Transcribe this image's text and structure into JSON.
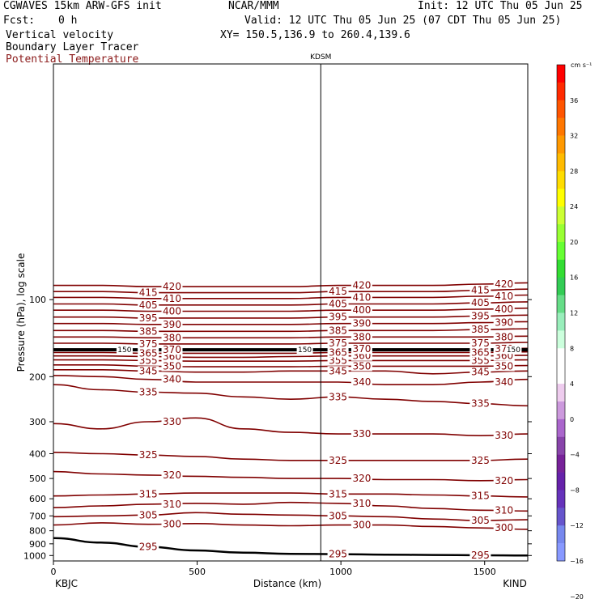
{
  "header": {
    "model": "CGWAVES 15km ARW-GFS init",
    "org": "NCAR/MMM",
    "init": "Init: 12 UTC Thu 05 Jun 25",
    "fcst_label": "Fcst:",
    "fcst_value": "0 h",
    "valid": "Valid: 12 UTC Thu 05 Jun 25 (07 CDT Thu 05 Jun 25)",
    "field1": "Vertical velocity",
    "field2": "Boundary Layer Tracer",
    "field3": "Potential Temperature",
    "xy": "XY= 150.5,136.9 to 260.4,139.6"
  },
  "chart_data": {
    "type": "line",
    "title": "",
    "xlabel": "Distance (km)",
    "ylabel": "Pressure (hPa), log scale",
    "xlim": [
      0,
      1650
    ],
    "ylim": [
      1050,
      12
    ],
    "y_scale": "log",
    "x_ticks": [
      0,
      500,
      1000,
      1500
    ],
    "y_ticks": [
      100,
      200,
      300,
      400,
      500,
      600,
      700,
      800,
      900,
      1000
    ],
    "marker_label": "KDSM",
    "marker_x": 930,
    "left_station": "KBJC",
    "right_station": "KIND",
    "line_color": "#800000",
    "series": [
      {
        "theta": "295",
        "x": [
          0,
          165,
          330,
          495,
          660,
          825,
          990,
          1155,
          1320,
          1485,
          1650
        ],
        "p": [
          855,
          890,
          925,
          955,
          975,
          985,
          988,
          992,
          995,
          998,
          1000
        ]
      },
      {
        "theta": "300",
        "x": [
          0,
          165,
          330,
          495,
          660,
          825,
          990,
          1155,
          1320,
          1485,
          1650
        ],
        "p": [
          760,
          745,
          755,
          750,
          760,
          765,
          760,
          760,
          770,
          780,
          790
        ]
      },
      {
        "theta": "305",
        "x": [
          0,
          165,
          330,
          495,
          660,
          825,
          990,
          1155,
          1320,
          1485,
          1650
        ],
        "p": [
          705,
          700,
          695,
          680,
          690,
          695,
          700,
          705,
          720,
          730,
          725
        ]
      },
      {
        "theta": "310",
        "x": [
          0,
          165,
          330,
          495,
          660,
          825,
          990,
          1155,
          1320,
          1485,
          1650
        ],
        "p": [
          650,
          640,
          630,
          625,
          630,
          620,
          625,
          640,
          655,
          665,
          670
        ]
      },
      {
        "theta": "315",
        "x": [
          0,
          165,
          330,
          495,
          660,
          825,
          990,
          1155,
          1320,
          1485,
          1650
        ],
        "p": [
          585,
          580,
          575,
          570,
          570,
          570,
          575,
          575,
          580,
          585,
          590
        ]
      },
      {
        "theta": "320",
        "x": [
          0,
          165,
          330,
          495,
          660,
          825,
          990,
          1155,
          1320,
          1485,
          1650
        ],
        "p": [
          470,
          480,
          485,
          490,
          495,
          500,
          500,
          505,
          505,
          510,
          505
        ]
      },
      {
        "theta": "325",
        "x": [
          0,
          165,
          330,
          495,
          660,
          825,
          990,
          1155,
          1320,
          1485,
          1650
        ],
        "p": [
          395,
          400,
          405,
          410,
          420,
          425,
          425,
          425,
          425,
          425,
          420
        ]
      },
      {
        "theta": "330",
        "x": [
          0,
          165,
          330,
          495,
          660,
          825,
          990,
          1155,
          1320,
          1485,
          1650
        ],
        "p": [
          305,
          320,
          300,
          290,
          320,
          330,
          335,
          335,
          335,
          340,
          335
        ]
      },
      {
        "theta": "335",
        "x": [
          0,
          165,
          330,
          495,
          660,
          825,
          990,
          1155,
          1320,
          1485,
          1650
        ],
        "p": [
          215,
          225,
          230,
          232,
          240,
          245,
          240,
          245,
          250,
          255,
          260
        ]
      },
      {
        "theta": "340",
        "x": [
          0,
          165,
          330,
          495,
          660,
          825,
          990,
          1155,
          1320,
          1485,
          1650
        ],
        "p": [
          198,
          200,
          205,
          210,
          210,
          210,
          210,
          215,
          215,
          210,
          205
        ]
      },
      {
        "theta": "345",
        "x": [
          0,
          165,
          330,
          495,
          660,
          825,
          990,
          1155,
          1320,
          1485,
          1650
        ],
        "p": [
          188,
          188,
          190,
          192,
          192,
          190,
          190,
          190,
          195,
          192,
          190
        ]
      },
      {
        "theta": "350",
        "x": [
          0,
          165,
          330,
          495,
          660,
          825,
          990,
          1155,
          1320,
          1485,
          1650
        ],
        "p": [
          180,
          180,
          182,
          183,
          183,
          183,
          182,
          182,
          182,
          182,
          181
        ]
      },
      {
        "theta": "355",
        "x": [
          0,
          165,
          330,
          495,
          660,
          825,
          990,
          1155,
          1320,
          1485,
          1650
        ],
        "p": [
          172,
          172,
          173,
          174,
          174,
          174,
          173,
          173,
          173,
          173,
          172
        ]
      },
      {
        "theta": "360",
        "x": [
          0,
          165,
          330,
          495,
          660,
          825,
          990,
          1155,
          1320,
          1485,
          1650
        ],
        "p": [
          166,
          166,
          167,
          168,
          168,
          167,
          166,
          166,
          166,
          166,
          165
        ]
      },
      {
        "theta": "365",
        "x": [
          0,
          165,
          330,
          495,
          660,
          825,
          990,
          1155,
          1320,
          1485,
          1650
        ],
        "p": [
          161,
          161,
          162,
          162,
          162,
          162,
          161,
          161,
          161,
          161,
          160
        ]
      },
      {
        "theta": "370",
        "x": [
          0,
          165,
          330,
          495,
          660,
          825,
          990,
          1155,
          1320,
          1485,
          1650
        ],
        "p": [
          156,
          156,
          157,
          157,
          157,
          157,
          156,
          156,
          156,
          156,
          155
        ]
      },
      {
        "theta": "375",
        "x": [
          0,
          165,
          330,
          495,
          660,
          825,
          990,
          1155,
          1320,
          1485,
          1650
        ],
        "p": [
          148,
          148,
          149,
          149,
          149,
          149,
          148,
          148,
          148,
          148,
          147
        ]
      },
      {
        "theta": "380",
        "x": [
          0,
          165,
          330,
          495,
          660,
          825,
          990,
          1155,
          1320,
          1485,
          1650
        ],
        "p": [
          140,
          140,
          141,
          141,
          141,
          141,
          140,
          140,
          140,
          140,
          139
        ]
      },
      {
        "theta": "385",
        "x": [
          0,
          165,
          330,
          495,
          660,
          825,
          990,
          1155,
          1320,
          1485,
          1650
        ],
        "p": [
          132,
          132,
          133,
          133,
          133,
          133,
          132,
          132,
          132,
          131,
          130
        ]
      },
      {
        "theta": "390",
        "x": [
          0,
          165,
          330,
          495,
          660,
          825,
          990,
          1155,
          1320,
          1485,
          1650
        ],
        "p": [
          124,
          124,
          125,
          125,
          125,
          125,
          124,
          124,
          124,
          123,
          122
        ]
      },
      {
        "theta": "395",
        "x": [
          0,
          165,
          330,
          495,
          660,
          825,
          990,
          1155,
          1320,
          1485,
          1650
        ],
        "p": [
          117,
          117,
          118,
          118,
          118,
          118,
          117,
          117,
          117,
          116,
          115
        ]
      },
      {
        "theta": "400",
        "x": [
          0,
          165,
          330,
          495,
          660,
          825,
          990,
          1155,
          1320,
          1485,
          1650
        ],
        "p": [
          110,
          110,
          111,
          111,
          111,
          111,
          110,
          110,
          110,
          109,
          108
        ]
      },
      {
        "theta": "405",
        "x": [
          0,
          165,
          330,
          495,
          660,
          825,
          990,
          1155,
          1320,
          1485,
          1650
        ],
        "p": [
          104,
          104,
          105,
          105,
          105,
          105,
          104,
          104,
          104,
          103,
          102
        ]
      },
      {
        "theta": "410",
        "x": [
          0,
          165,
          330,
          495,
          660,
          825,
          990,
          1155,
          1320,
          1485,
          1650
        ],
        "p": [
          98,
          98,
          99,
          99,
          99,
          99,
          98,
          98,
          98,
          97,
          96
        ]
      },
      {
        "theta": "415",
        "x": [
          0,
          165,
          330,
          495,
          660,
          825,
          990,
          1155,
          1320,
          1485,
          1650
        ],
        "p": [
          93,
          93,
          94,
          94,
          94,
          94,
          93,
          93,
          93,
          92,
          91
        ]
      },
      {
        "theta": "420",
        "x": [
          0,
          165,
          330,
          495,
          660,
          825,
          990,
          1155,
          1320,
          1485,
          1650
        ],
        "p": [
          88,
          88,
          89,
          89,
          89,
          89,
          88,
          88,
          88,
          87,
          86
        ]
      }
    ],
    "thick_line": {
      "name": "150",
      "x": [
        0,
        1650
      ],
      "p": [
        157,
        157
      ]
    },
    "colorbar": {
      "unit": "cm s⁻¹",
      "tick_labels": [
        "36",
        "32",
        "28",
        "24",
        "20",
        "16",
        "12",
        "8",
        "4",
        "0",
        "−4",
        "−8",
        "−12",
        "−16",
        "−20"
      ],
      "colors": [
        "#ff0000",
        "#ff2a00",
        "#ff5500",
        "#ff7700",
        "#ff9900",
        "#ffbb00",
        "#ffdd00",
        "#ffff00",
        "#ccff33",
        "#99ff33",
        "#66ff33",
        "#33dd33",
        "#33cc55",
        "#66dd88",
        "#99eebb",
        "#ccffdd",
        "#ffffff",
        "#ffffff",
        "#eeccee",
        "#cc99dd",
        "#aa66cc",
        "#8844aa",
        "#772299",
        "#6622aa",
        "#6633bb",
        "#6655cc",
        "#7788ee",
        "#8899ff"
      ]
    }
  }
}
